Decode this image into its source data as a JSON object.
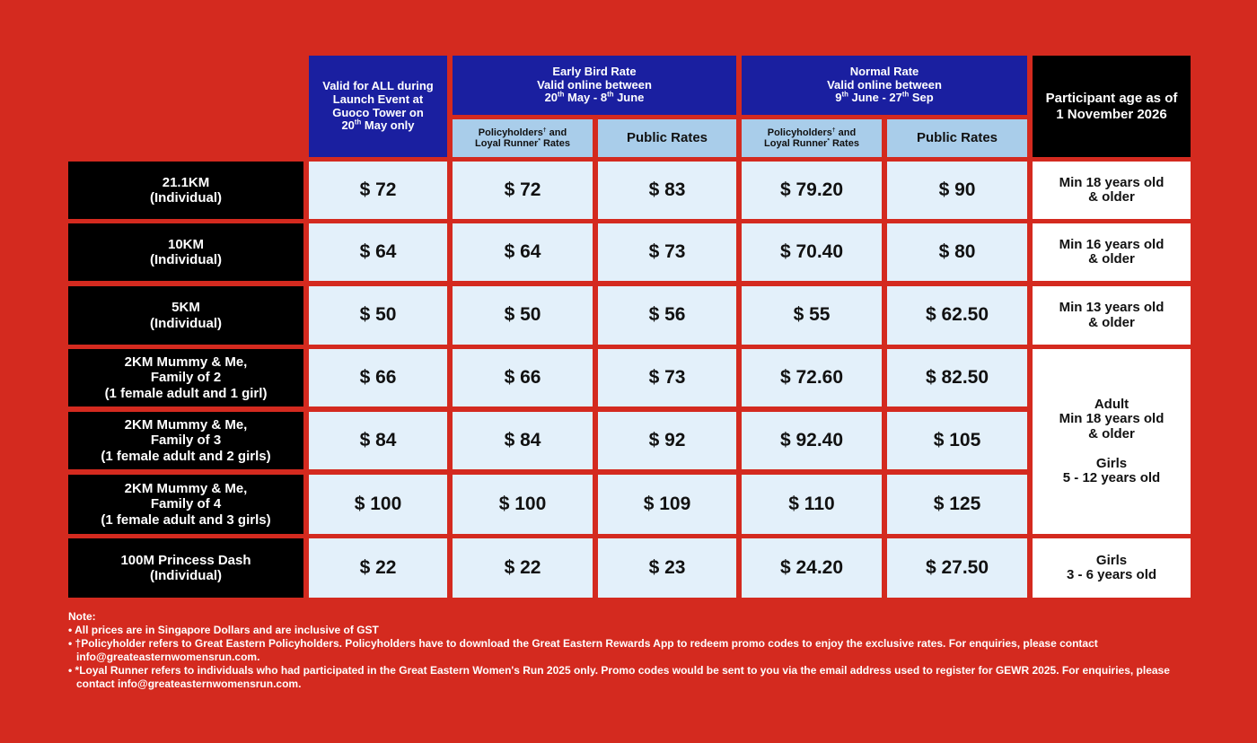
{
  "headers": {
    "launch": {
      "line1": "Valid for ALL during",
      "line2": "Launch Event at",
      "line3": "Guoco Tower on",
      "date_num": "20",
      "date_sup": "th",
      "date_rest": " May only"
    },
    "early_bird": {
      "title": "Early Bird Rate",
      "subtitle": "Valid online between",
      "d1_num": "20",
      "d1_sup": "th",
      "d1_rest": " May - ",
      "d2_num": "8",
      "d2_sup": "th",
      "d2_rest": " June"
    },
    "normal": {
      "title": "Normal Rate",
      "subtitle": "Valid online between",
      "d1_num": "9",
      "d1_sup": "th",
      "d1_rest": " June - ",
      "d2_num": "27",
      "d2_sup": "th",
      "d2_rest": " Sep"
    },
    "age": {
      "line1": "Participant age as of",
      "line2": "1 November 2026"
    },
    "policy_line1": "Policyholders",
    "policy_sup": "†",
    "policy_line1_rest": " and",
    "policy_line2": "Loyal Runner",
    "policy_sup2": "*",
    "policy_line2_rest": " Rates",
    "public": "Public Rates"
  },
  "rows": [
    {
      "label": "21.1KM\n(Individual)",
      "prices": [
        "$ 72",
        "$ 72",
        "$ 83",
        "$ 79.20",
        "$ 90"
      ]
    },
    {
      "label": "10KM\n(Individual)",
      "prices": [
        "$ 64",
        "$ 64",
        "$ 73",
        "$ 70.40",
        "$ 80"
      ]
    },
    {
      "label": "5KM\n(Individual)",
      "prices": [
        "$ 50",
        "$ 50",
        "$ 56",
        "$ 55",
        "$ 62.50"
      ]
    },
    {
      "label": "2KM Mummy & Me,\nFamily of 2\n(1 female adult and 1 girl)",
      "prices": [
        "$ 66",
        "$ 66",
        "$ 73",
        "$ 72.60",
        "$ 82.50"
      ]
    },
    {
      "label": "2KM Mummy & Me,\nFamily of 3\n(1 female adult and 2 girls)",
      "prices": [
        "$ 84",
        "$ 84",
        "$ 92",
        "$ 92.40",
        "$ 105"
      ]
    },
    {
      "label": "2KM Mummy & Me,\nFamily of 4\n(1 female adult and 3 girls)",
      "prices": [
        "$ 100",
        "$ 100",
        "$ 109",
        "$ 110",
        "$ 125"
      ]
    },
    {
      "label": "100M Princess Dash\n(Individual)",
      "prices": [
        "$ 22",
        "$ 22",
        "$ 23",
        "$ 24.20",
        "$ 27.50"
      ]
    }
  ],
  "ages": [
    "Min 18 years old\n& older",
    "Min 16 years old\n& older",
    "Min 13 years old\n& older",
    "Adult\nMin 18 years old\n& older\n\nGirls\n5 - 12 years old",
    "Girls\n3 - 6 years old"
  ],
  "notes": {
    "title": "Note:",
    "items": [
      "• All prices are in Singapore Dollars and are inclusive of GST",
      "• †Policyholder refers to Great Eastern Policyholders. Policyholders have to download the Great Eastern Rewards App to redeem promo codes to enjoy the exclusive rates. For enquiries, please contact info@greateasternwomensrun.com.",
      "• *Loyal Runner refers to individuals who had participated in the Great Eastern Women's Run 2025 only. Promo codes would be sent to you via the email address used to register for GEWR 2025. For enquiries, please contact info@greateasternwomensrun.com."
    ]
  }
}
